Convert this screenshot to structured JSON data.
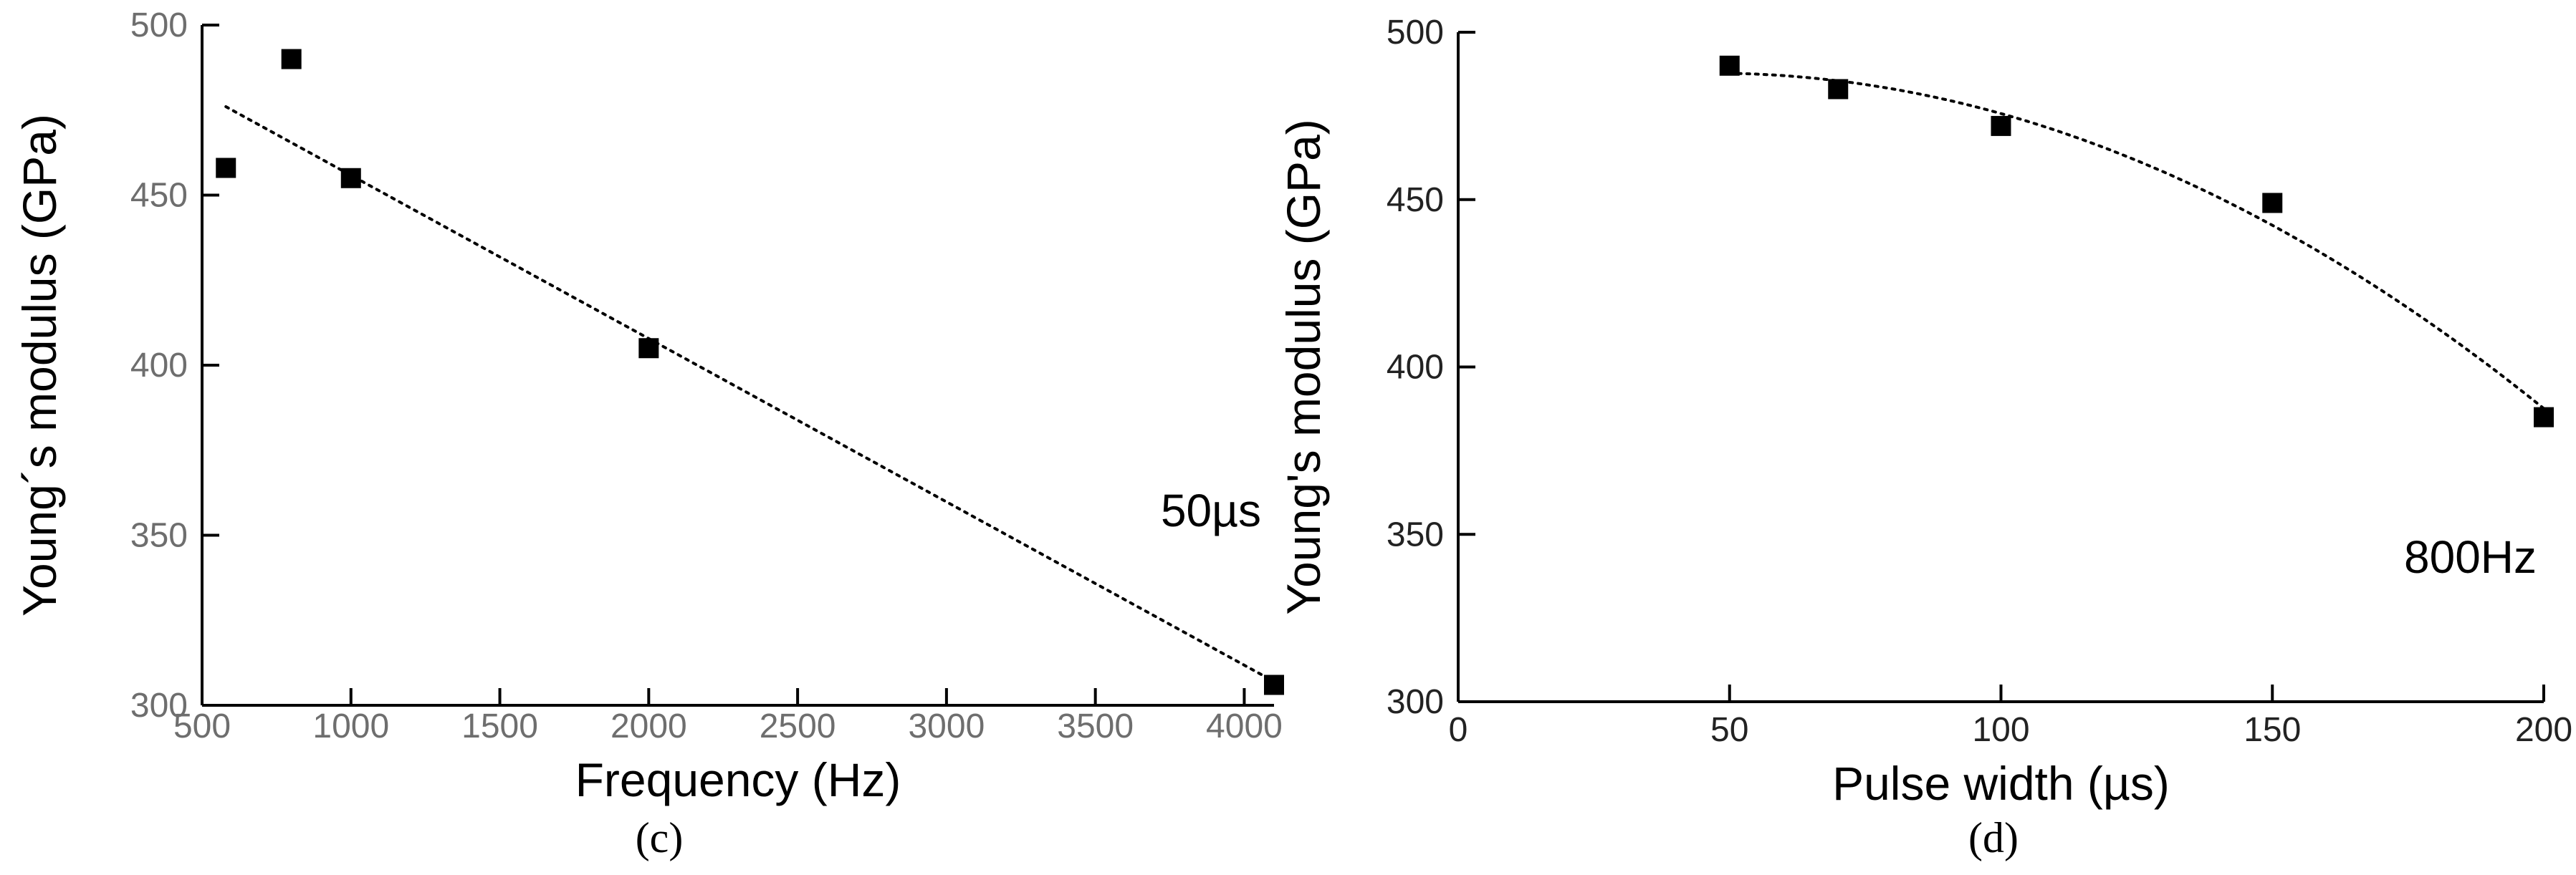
{
  "chart_data": [
    {
      "type": "scatter",
      "panel_label": "(c)",
      "xlabel": "Frequency (Hz)",
      "ylabel": "Young´s modulus (GPa)",
      "xlim": [
        500,
        4100
      ],
      "ylim": [
        300,
        500
      ],
      "xticks": [
        500,
        1000,
        1500,
        2000,
        2500,
        3000,
        3500,
        4000
      ],
      "yticks": [
        300,
        350,
        400,
        450,
        500
      ],
      "annotation": "50µs",
      "series": [
        {
          "x": [
            580,
            800,
            1000,
            2000,
            4100
          ],
          "y": [
            458,
            490,
            455,
            405,
            306
          ]
        }
      ],
      "trendline": {
        "kind": "linear",
        "x": [
          580,
          4100
        ],
        "y": [
          476,
          307
        ]
      },
      "tick_color": "#6e6e6e"
    },
    {
      "type": "scatter",
      "panel_label": "(d)",
      "xlabel": "Pulse width (µs)",
      "ylabel": "Young's modulus (GPa)",
      "xlim": [
        0,
        200
      ],
      "ylim": [
        300,
        500
      ],
      "xticks": [
        0,
        50,
        100,
        150,
        200
      ],
      "yticks": [
        300,
        350,
        400,
        450,
        500
      ],
      "annotation": "800Hz",
      "series": [
        {
          "x": [
            50,
            70,
            100,
            150,
            200
          ],
          "y": [
            490,
            483,
            472,
            449,
            385
          ]
        }
      ],
      "trendline": {
        "kind": "quadratic",
        "x": [
          50,
          200
        ],
        "coef": [
          478.4,
          0.4,
          -0.00427
        ]
      },
      "tick_color": "#222222"
    }
  ]
}
